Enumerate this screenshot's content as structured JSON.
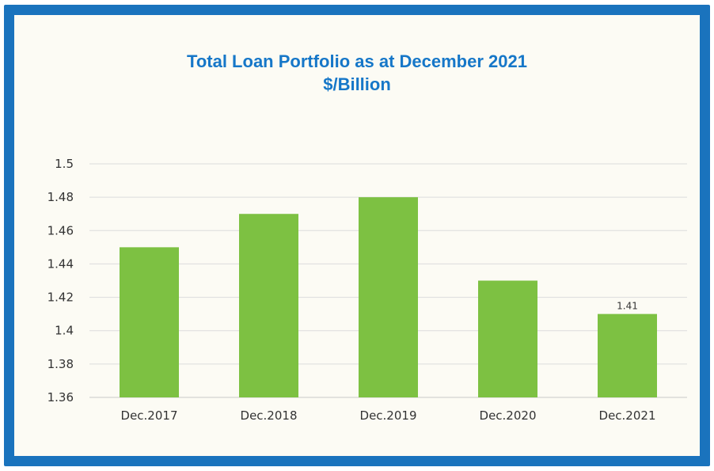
{
  "chart_data": {
    "type": "bar",
    "title": "Total Loan Portfolio as at December 2021",
    "subtitle": "$/Billion",
    "categories": [
      "Dec.2017",
      "Dec.2018",
      "Dec.2019",
      "Dec.2020",
      "Dec.2021"
    ],
    "values": [
      1.45,
      1.47,
      1.48,
      1.43,
      1.41
    ],
    "data_labels": [
      "",
      "",
      "",
      "",
      "1.41"
    ],
    "yticks": [
      "1.36",
      "1.38",
      "1.4",
      "1.42",
      "1.44",
      "1.46",
      "1.48",
      "1.5"
    ],
    "ylim": [
      1.36,
      1.5
    ],
    "xlabel": "",
    "ylabel": "",
    "grid": true,
    "legend": "none",
    "bar_color": "#7dc142",
    "title_color": "#1677c8",
    "frame_color": "#1a73bd"
  }
}
